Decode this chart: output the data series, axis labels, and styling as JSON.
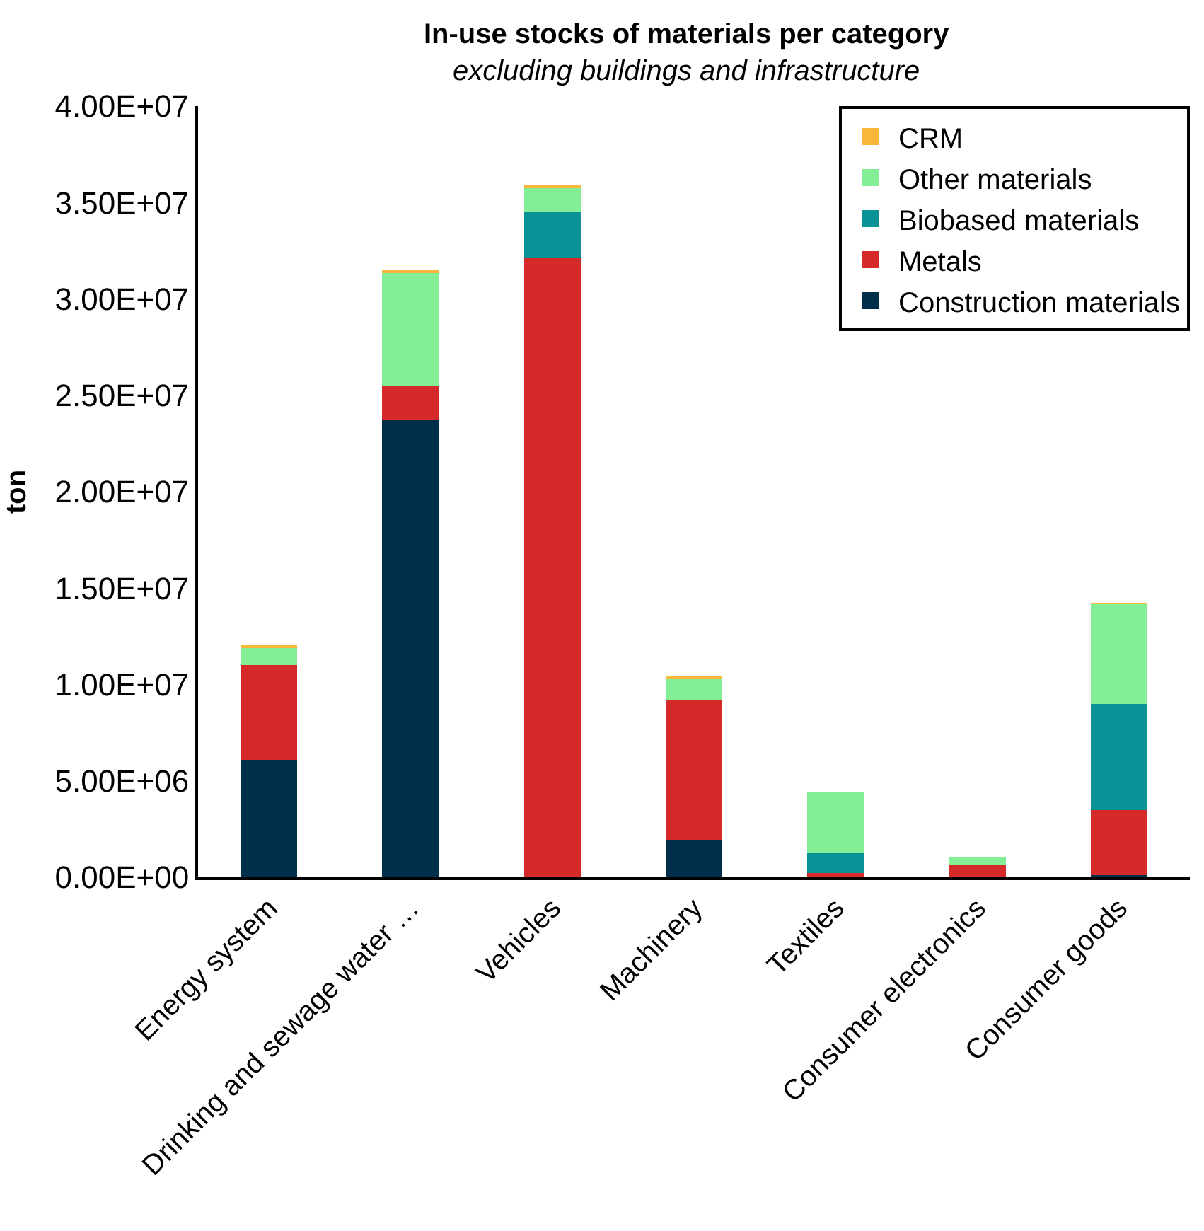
{
  "chart_data": {
    "type": "bar",
    "stacked": true,
    "title": "In-use stocks of materials per category",
    "subtitle": "excluding buildings and infrastructure",
    "ylabel": "ton",
    "categories": [
      "Energy system",
      "Drinking and sewage water …",
      "Vehicles",
      "Machinery",
      "Textiles",
      "Consumer electronics",
      "Consumer goods"
    ],
    "series": [
      {
        "name": "Construction materials",
        "color": "#002f4a",
        "values": [
          6100000,
          23700000,
          0,
          1900000,
          null,
          0,
          100000
        ]
      },
      {
        "name": "Metals",
        "color": "#d62a2a",
        "values": [
          4900000,
          1750000,
          32100000,
          7270000,
          220000,
          670000,
          3400000
        ]
      },
      {
        "name": "Biobased materials",
        "color": "#0a9396",
        "values": [
          0,
          0,
          2400000,
          0,
          1030000,
          0,
          5500000
        ]
      },
      {
        "name": "Other materials",
        "color": "#82ee96",
        "values": [
          950000,
          5950000,
          1300000,
          1150000,
          3200000,
          360000,
          5200000
        ]
      },
      {
        "name": "CRM",
        "color": "#f8b73b",
        "values": [
          50000,
          20000,
          20000,
          30000,
          0,
          0,
          30000
        ]
      }
    ],
    "ylim": [
      0,
      40000000
    ],
    "yticks": [
      {
        "value": 0,
        "label": "0.00E+00"
      },
      {
        "value": 5000000,
        "label": "5.00E+06"
      },
      {
        "value": 10000000,
        "label": "1.00E+07"
      },
      {
        "value": 15000000,
        "label": "1.50E+07"
      },
      {
        "value": 20000000,
        "label": "2.00E+07"
      },
      {
        "value": 25000000,
        "label": "2.50E+07"
      },
      {
        "value": 30000000,
        "label": "3.00E+07"
      },
      {
        "value": 35000000,
        "label": "3.50E+07"
      },
      {
        "value": 40000000,
        "label": "4.00E+07"
      }
    ],
    "legend": "top right"
  }
}
